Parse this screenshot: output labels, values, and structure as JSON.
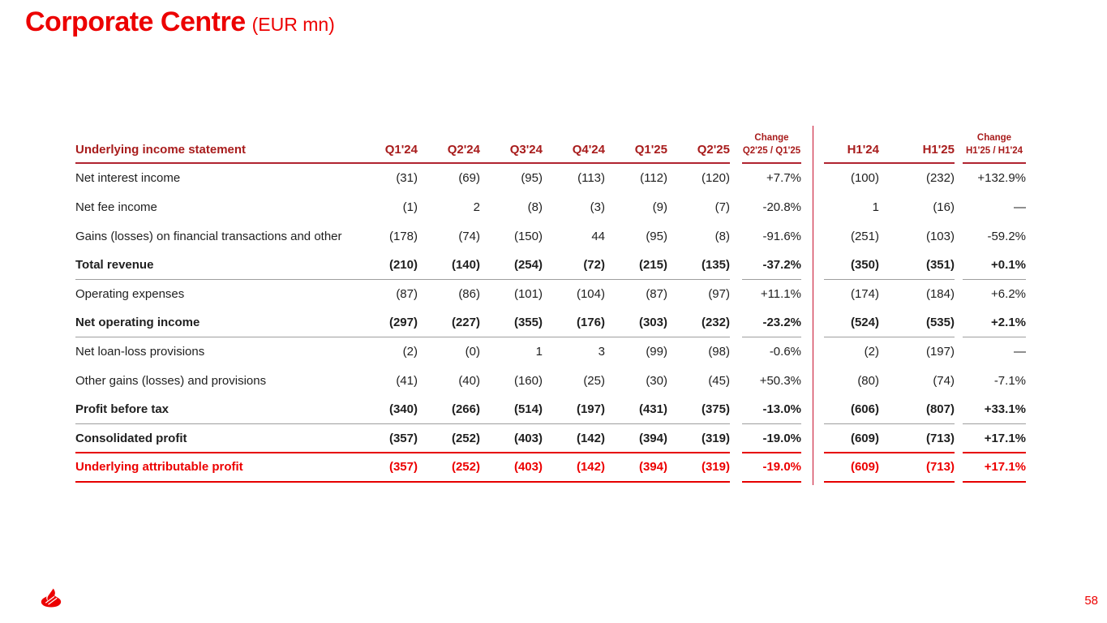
{
  "slide": {
    "title": "Corporate Centre",
    "title_suffix": "(EUR mn)"
  },
  "colors": {
    "brand_red": "#EC0000",
    "header_dark_red": "#A81C1C",
    "divider_red": "#C8102E",
    "line_gray": "#9E9E9E",
    "body_text": "#1F1F1F"
  },
  "table": {
    "header": {
      "row_label": "Underlying income statement",
      "quarters": [
        "Q1'24",
        "Q2'24",
        "Q3'24",
        "Q4'24",
        "Q1'25",
        "Q2'25"
      ],
      "change_label_q": "Change",
      "change_q_sub": "Q2'25 / Q1'25",
      "halves": [
        "H1'24",
        "H1'25"
      ],
      "change_label_h": "Change",
      "change_h_sub": "H1'25 / H1'24"
    },
    "rows": [
      {
        "label": "Net interest income",
        "bold": false,
        "red": false,
        "separator": "none",
        "q": [
          "(31)",
          "(69)",
          "(95)",
          "(113)",
          "(112)",
          "(120)"
        ],
        "chg_q": "+7.7%",
        "h": [
          "(100)",
          "(232)"
        ],
        "chg_h": "+132.9%"
      },
      {
        "label": "Net fee income",
        "bold": false,
        "red": false,
        "separator": "none",
        "q": [
          "(1)",
          "2",
          "(8)",
          "(3)",
          "(9)",
          "(7)"
        ],
        "chg_q": "-20.8%",
        "h": [
          "1",
          "(16)"
        ],
        "chg_h": "—"
      },
      {
        "label": "Gains (losses) on financial transactions and other",
        "bold": false,
        "red": false,
        "separator": "none",
        "q": [
          "(178)",
          "(74)",
          "(150)",
          "44",
          "(95)",
          "(8)"
        ],
        "chg_q": "-91.6%",
        "h": [
          "(251)",
          "(103)"
        ],
        "chg_h": "-59.2%"
      },
      {
        "label": "Total revenue",
        "bold": true,
        "red": false,
        "separator": "gray",
        "q": [
          "(210)",
          "(140)",
          "(254)",
          "(72)",
          "(215)",
          "(135)"
        ],
        "chg_q": "-37.2%",
        "h": [
          "(350)",
          "(351)"
        ],
        "chg_h": "+0.1%"
      },
      {
        "label": "Operating expenses",
        "bold": false,
        "red": false,
        "separator": "none",
        "q": [
          "(87)",
          "(86)",
          "(101)",
          "(104)",
          "(87)",
          "(97)"
        ],
        "chg_q": "+11.1%",
        "h": [
          "(174)",
          "(184)"
        ],
        "chg_h": "+6.2%"
      },
      {
        "label": "Net operating income",
        "bold": true,
        "red": false,
        "separator": "gray",
        "q": [
          "(297)",
          "(227)",
          "(355)",
          "(176)",
          "(303)",
          "(232)"
        ],
        "chg_q": "-23.2%",
        "h": [
          "(524)",
          "(535)"
        ],
        "chg_h": "+2.1%"
      },
      {
        "label": "Net loan-loss provisions",
        "bold": false,
        "red": false,
        "separator": "none",
        "q": [
          "(2)",
          "(0)",
          "1",
          "3",
          "(99)",
          "(98)"
        ],
        "chg_q": "-0.6%",
        "h": [
          "(2)",
          "(197)"
        ],
        "chg_h": "—"
      },
      {
        "label": "Other gains (losses) and provisions",
        "bold": false,
        "red": false,
        "separator": "none",
        "q": [
          "(41)",
          "(40)",
          "(160)",
          "(25)",
          "(30)",
          "(45)"
        ],
        "chg_q": "+50.3%",
        "h": [
          "(80)",
          "(74)"
        ],
        "chg_h": "-7.1%"
      },
      {
        "label": "Profit before tax",
        "bold": true,
        "red": false,
        "separator": "gray",
        "q": [
          "(340)",
          "(266)",
          "(514)",
          "(197)",
          "(431)",
          "(375)"
        ],
        "chg_q": "-13.0%",
        "h": [
          "(606)",
          "(807)"
        ],
        "chg_h": "+33.1%"
      },
      {
        "label": "Consolidated profit",
        "bold": true,
        "red": false,
        "separator": "red",
        "q": [
          "(357)",
          "(252)",
          "(403)",
          "(142)",
          "(394)",
          "(319)"
        ],
        "chg_q": "-19.0%",
        "h": [
          "(609)",
          "(713)"
        ],
        "chg_h": "+17.1%"
      },
      {
        "label": "Underlying attributable profit",
        "bold": true,
        "red": true,
        "separator": "red",
        "q": [
          "(357)",
          "(252)",
          "(403)",
          "(142)",
          "(394)",
          "(319)"
        ],
        "chg_q": "-19.0%",
        "h": [
          "(609)",
          "(713)"
        ],
        "chg_h": "+17.1%"
      }
    ]
  },
  "footer": {
    "page_number": "58",
    "logo_icon": "santander-flame-icon"
  }
}
